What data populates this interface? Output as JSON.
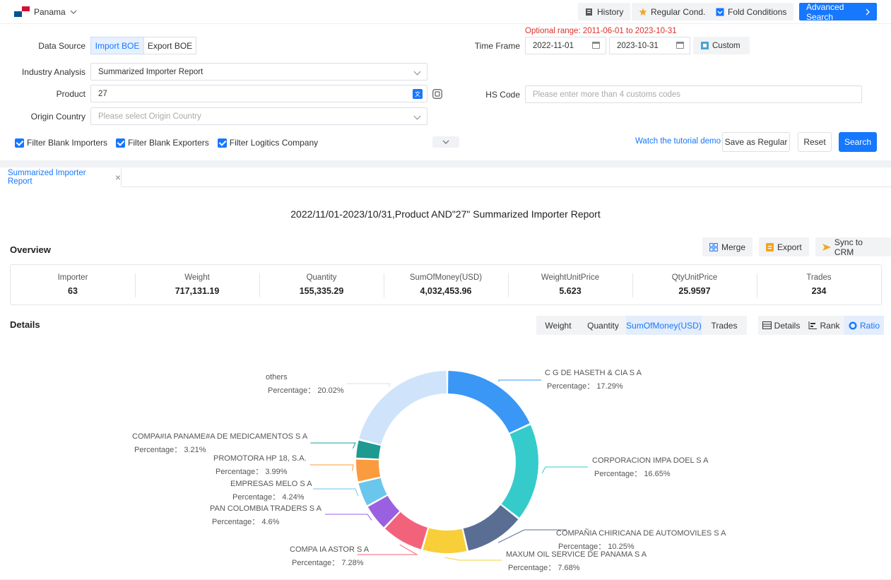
{
  "topbar": {
    "country": "Panama",
    "history": "History",
    "regular_cond": "Regular Cond.",
    "fold_conditions": "Fold Conditions",
    "advanced_search": "Advanced Search"
  },
  "form": {
    "optional_range_label": "Optional range:",
    "optional_range_value": "2011-06-01 to 2023-10-31",
    "data_source_label": "Data Source",
    "import_boe": "Import BOE",
    "export_boe": "Export BOE",
    "time_frame_label": "Time Frame",
    "date_from": "2022-11-01",
    "date_to": "2023-10-31",
    "custom": "Custom",
    "industry_label": "Industry Analysis",
    "industry_value": "Summarized Importer Report",
    "product_label": "Product",
    "product_value": "27",
    "hs_code_label": "HS Code",
    "hs_code_placeholder": "Please enter more than 4 customs codes",
    "origin_label": "Origin Country",
    "origin_placeholder": "Please select Origin Country",
    "filter_importers": "Filter Blank Importers",
    "filter_exporters": "Filter Blank Exporters",
    "filter_logistics": "Filter Logitics Company",
    "tutorial": "Watch the tutorial demo",
    "save_regular": "Save as Regular",
    "reset": "Reset",
    "search": "Search"
  },
  "tab": {
    "label": "Summarized Importer Report",
    "close": "×"
  },
  "report": {
    "title": "2022/11/01-2023/10/31,Product AND\"27\" Summarized Importer Report",
    "overview_title": "Overview",
    "merge": "Merge",
    "export": "Export",
    "sync_crm": "Sync to CRM",
    "overview": [
      {
        "label": "Importer",
        "value": "63"
      },
      {
        "label": "Weight",
        "value": "717,131.19"
      },
      {
        "label": "Quantity",
        "value": "155,335.29"
      },
      {
        "label": "SumOfMoney(USD)",
        "value": "4,032,453.96"
      },
      {
        "label": "WeightUnitPrice",
        "value": "5.623"
      },
      {
        "label": "QtyUnitPrice",
        "value": "25.9597"
      },
      {
        "label": "Trades",
        "value": "234"
      }
    ],
    "details_title": "Details",
    "metric_tabs": [
      "Weight",
      "Quantity",
      "SumOfMoney(USD)",
      "Trades"
    ],
    "active_metric": "SumOfMoney(USD)",
    "view_tabs": [
      "Details",
      "Rank",
      "Ratio"
    ],
    "active_view": "Ratio"
  },
  "chart_data": {
    "type": "pie",
    "variant": "donut",
    "slices": [
      {
        "label": "C G DE HASETH & CIA S A",
        "value": 17.29,
        "percent_text": "Percentage： 17.29%",
        "color": "#3a97f5"
      },
      {
        "label": "CORPORACION IMPA DOEL S A",
        "value": 16.65,
        "percent_text": "Percentage： 16.65%",
        "color": "#36cbcb"
      },
      {
        "label": "COMPAÑIA CHIRICANA DE AUTOMOVILES S A",
        "value": 10.25,
        "percent_text": "Percentage： 10.25%",
        "color": "#5a6e94"
      },
      {
        "label": "MAXUM OIL SERVICE DE PANAMA S A",
        "value": 7.68,
        "percent_text": "Percentage： 7.68%",
        "color": "#f8cf38"
      },
      {
        "label": "COMPA IA ASTOR S A",
        "value": 7.28,
        "percent_text": "Percentage： 7.28%",
        "color": "#f2637b"
      },
      {
        "label": "PAN COLOMBIA TRADERS S A",
        "value": 4.6,
        "percent_text": "Percentage： 4.6%",
        "color": "#9a60e0"
      },
      {
        "label": "EMPRESAS MELO S A",
        "value": 4.24,
        "percent_text": "Percentage： 4.24%",
        "color": "#6bc6ec"
      },
      {
        "label": "PROMOTORA HP 18, S.A.",
        "value": 3.99,
        "percent_text": "Percentage： 3.99%",
        "color": "#fb9b3f"
      },
      {
        "label": "COMPA#IA PANAME#A DE MEDICAMENTOS S A",
        "value": 3.21,
        "percent_text": "Percentage： 3.21%",
        "color": "#1e9a90"
      },
      {
        "label": "others",
        "value": 20.02,
        "percent_text": "Percentage： 20.02%",
        "color": "#f79ac4"
      }
    ]
  }
}
